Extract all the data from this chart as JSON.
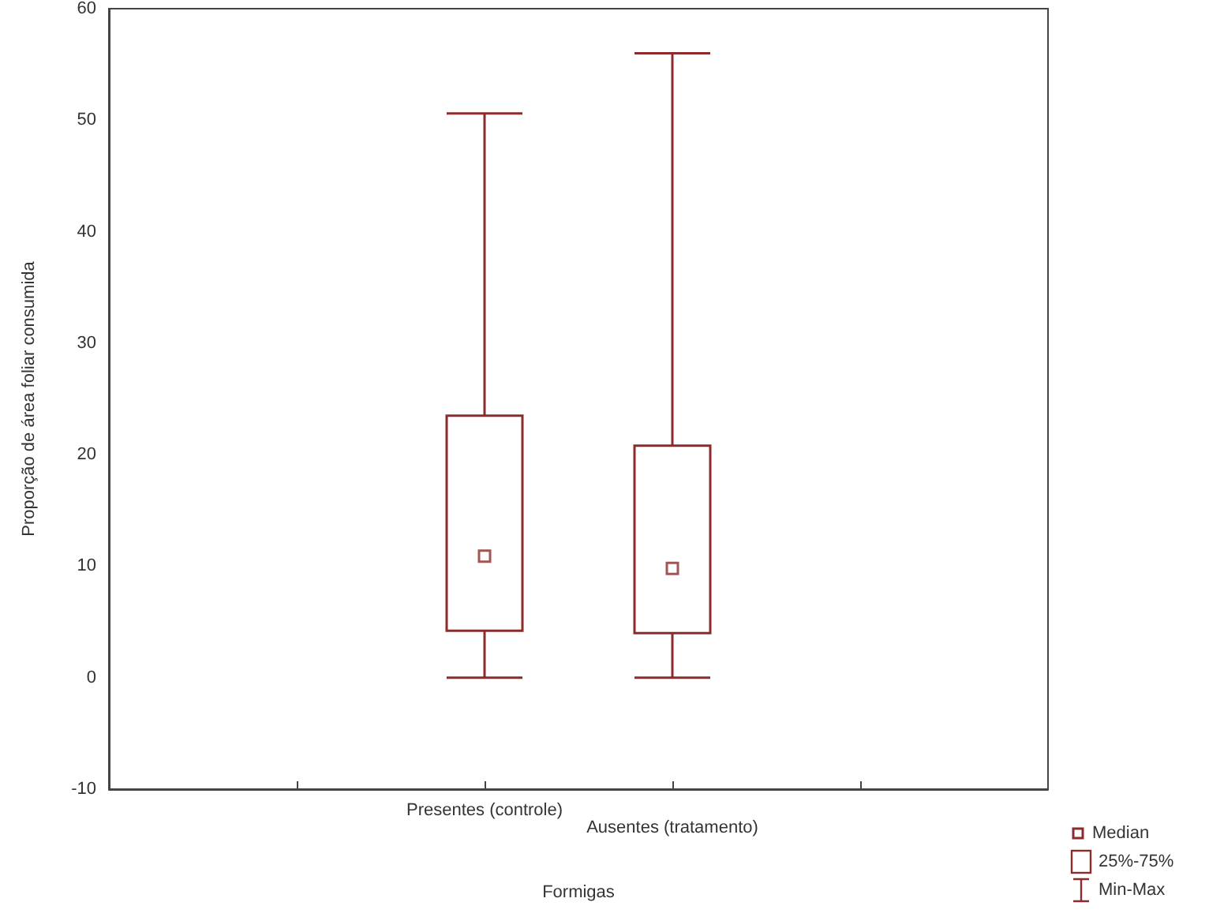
{
  "chart_data": {
    "type": "box",
    "xlabel": "Formigas",
    "ylabel": "Proporção de área foliar consumida",
    "categories": [
      "Presentes (controle)",
      "Ausentes (tratamento)"
    ],
    "series": [
      {
        "color": "#8b2b2b",
        "boxes": [
          {
            "low": 0,
            "q1": 4.2,
            "median": 10.9,
            "q3": 23.5,
            "high": 50.6
          },
          {
            "low": 0,
            "q1": 4,
            "median": 9.8,
            "q3": 20.8,
            "high": 56
          }
        ]
      }
    ],
    "ylim": [
      -10,
      60
    ],
    "yticks": [
      -10,
      0,
      10,
      20,
      30,
      40,
      50,
      60
    ],
    "grid": false,
    "marker": "square",
    "annotations": [
      "Median",
      "25%-75%",
      "Min-Max"
    ]
  }
}
